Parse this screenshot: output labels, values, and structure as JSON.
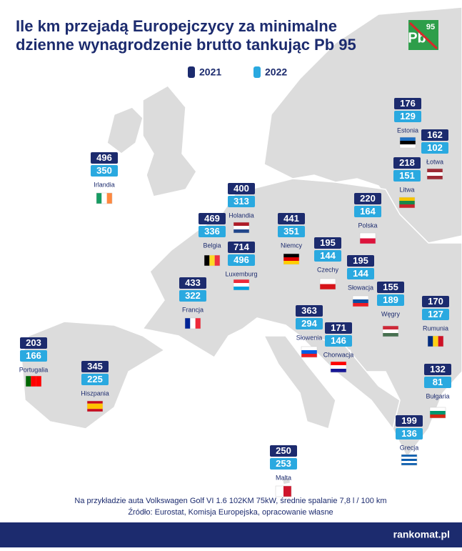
{
  "title": [
    "Ile km przejadą Europejczycy za minimalne",
    "dzienne wynagrodzenie brutto tankując Pb 95"
  ],
  "logo": [
    "Pb",
    "95"
  ],
  "legend": [
    {
      "label": "2021",
      "color": "#1c2b6e"
    },
    {
      "label": "2022",
      "color": "#2aa9e0"
    }
  ],
  "countries": [
    {
      "name": "Estonia",
      "values": [
        176,
        129
      ]
    },
    {
      "name": "Łotwa",
      "values": [
        162,
        102
      ]
    },
    {
      "name": "Litwa",
      "values": [
        218,
        151
      ]
    },
    {
      "name": "Irlandia",
      "values": [
        496,
        350
      ]
    },
    {
      "name": "Holandia",
      "values": [
        400,
        313
      ]
    },
    {
      "name": "Polska",
      "values": [
        220,
        164
      ]
    },
    {
      "name": "Belgia",
      "values": [
        469,
        336
      ]
    },
    {
      "name": "Niemcy",
      "values": [
        441,
        351
      ]
    },
    {
      "name": "Luxemburg",
      "values": [
        714,
        496
      ]
    },
    {
      "name": "Czechy",
      "values": [
        195,
        144
      ]
    },
    {
      "name": "Słowacja",
      "values": [
        195,
        144
      ]
    },
    {
      "name": "Francja",
      "values": [
        433,
        322
      ]
    },
    {
      "name": "Węgry",
      "values": [
        155,
        189
      ]
    },
    {
      "name": "Rumunia",
      "values": [
        170,
        127
      ]
    },
    {
      "name": "Słowenia",
      "values": [
        363,
        294
      ]
    },
    {
      "name": "Chorwacja",
      "values": [
        171,
        146
      ]
    },
    {
      "name": "Portugalia",
      "values": [
        203,
        166
      ]
    },
    {
      "name": "Hiszpania",
      "values": [
        345,
        225
      ]
    },
    {
      "name": "Bułgaria",
      "values": [
        132,
        81
      ]
    },
    {
      "name": "Grecja",
      "values": [
        199,
        136
      ]
    },
    {
      "name": "Malta",
      "values": [
        250,
        253
      ]
    }
  ],
  "footnotes": [
    "Na przykładzie auta Volkswagen Golf VI 1.6 102KM 75kW, średnie spalanie 7,8 l / 100 km",
    "Źródło: Eurostat, Komisja Europejska, opracowanie własne"
  ],
  "brand": "rankomat.pl"
}
